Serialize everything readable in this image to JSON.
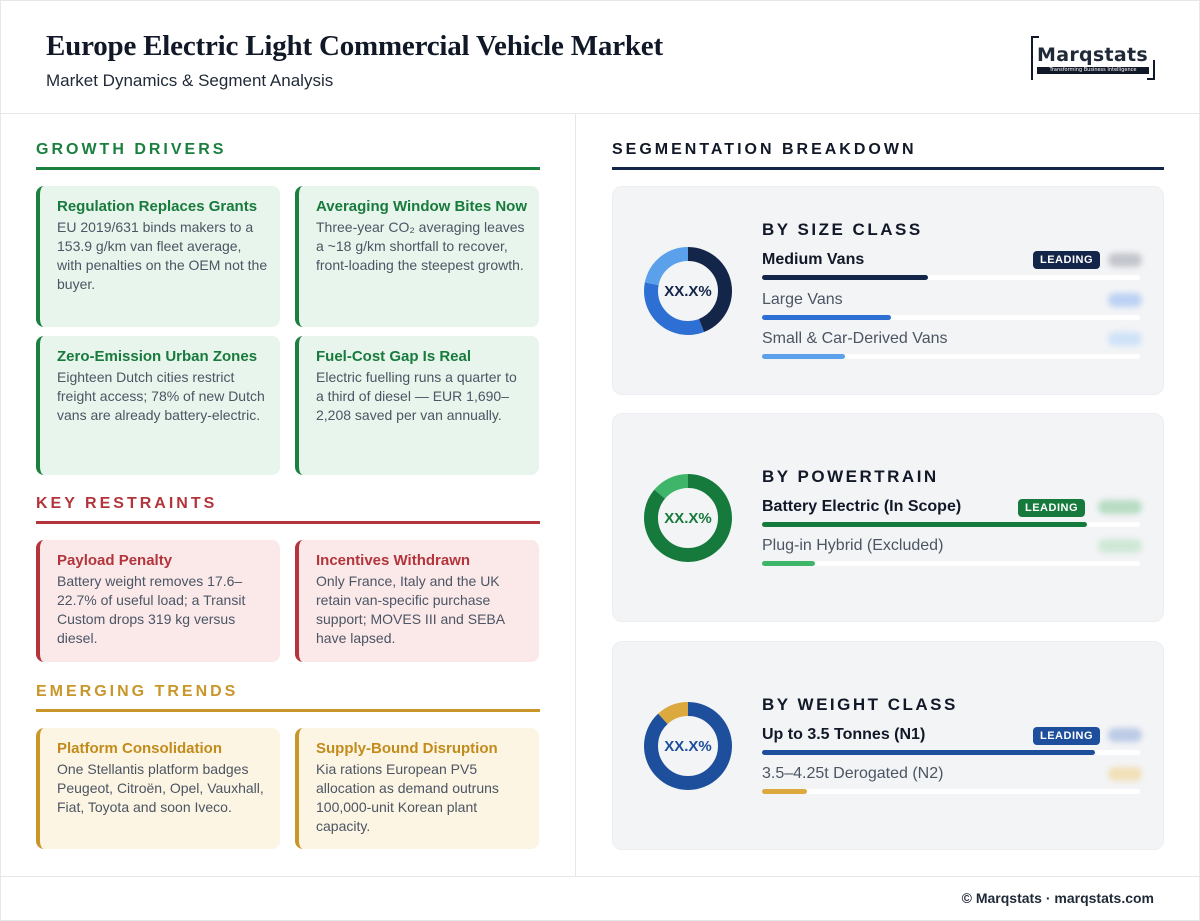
{
  "header": {
    "title": "Europe Electric Light Commercial Vehicle Market",
    "subtitle": "Market Dynamics & Segment Analysis",
    "logo_text": "Marqstats",
    "logo_tagline": "Transforming Business Intelligence"
  },
  "drivers": {
    "heading": "GROWTH DRIVERS",
    "color": "#1a7f3f",
    "cards": [
      {
        "title": "Regulation Replaces Grants",
        "body": "EU 2019/631 binds makers to a 153.9 g/km van fleet average, with penalties on the OEM not the buyer."
      },
      {
        "title": "Averaging Window Bites Now",
        "body": "Three-year CO₂ averaging leaves a ~18 g/km shortfall to recover, front-loading the steepest growth."
      },
      {
        "title": "Zero-Emission Urban Zones",
        "body": "Eighteen Dutch cities restrict freight access; 78% of new Dutch vans are already battery-electric."
      },
      {
        "title": "Fuel-Cost Gap Is Real",
        "body": "Electric fuelling runs a quarter to a third of diesel — EUR 1,690–2,208 saved per van annually."
      }
    ]
  },
  "restraints": {
    "heading": "KEY RESTRAINTS",
    "color": "#b3353b",
    "cards": [
      {
        "title": "Payload Penalty",
        "body": "Battery weight removes 17.6–22.7% of useful load; a Transit Custom drops 319 kg versus diesel."
      },
      {
        "title": "Incentives Withdrawn",
        "body": "Only France, Italy and the UK retain van-specific purchase support; MOVES III and SEBA have lapsed."
      }
    ]
  },
  "trends": {
    "heading": "EMERGING TRENDS",
    "color": "#c9962a",
    "cards": [
      {
        "title": "Platform Consolidation",
        "body": "One Stellantis platform badges Peugeot, Citroën, Opel, Vauxhall, Fiat, Toyota and soon Iveco."
      },
      {
        "title": "Supply-Bound Disruption",
        "body": "Kia rations European PV5 allocation as demand outruns 100,000-unit Korean plant capacity."
      }
    ]
  },
  "segmentation": {
    "heading": "SEGMENTATION BREAKDOWN",
    "badge_label": "LEADING",
    "panels": [
      {
        "title": "BY SIZE CLASS",
        "center_label": "XX.X%",
        "rows": [
          {
            "label": "Medium Vans",
            "share": 0.44,
            "color": "#14254a",
            "leading": true
          },
          {
            "label": "Large Vans",
            "share": 0.34,
            "color": "#2d6fd2",
            "leading": false
          },
          {
            "label": "Small & Car-Derived Vans",
            "share": 0.22,
            "color": "#5aa0ea",
            "leading": false
          }
        ]
      },
      {
        "title": "BY POWERTRAIN",
        "center_label": "XX.X%",
        "rows": [
          {
            "label": "Battery Electric (In Scope)",
            "share": 0.86,
            "color": "#167a3c",
            "leading": true
          },
          {
            "label": "Plug-in Hybrid (Excluded)",
            "share": 0.14,
            "color": "#3fb56a",
            "leading": false
          }
        ]
      },
      {
        "title": "BY WEIGHT CLASS",
        "center_label": "XX.X%",
        "rows": [
          {
            "label": "Up to 3.5 Tonnes (N1)",
            "share": 0.88,
            "color": "#1d4f9c",
            "leading": true
          },
          {
            "label": "3.5–4.25t Derogated (N2)",
            "share": 0.12,
            "color": "#dba93d",
            "leading": false
          }
        ]
      }
    ]
  },
  "footer": {
    "text": "© Marqstats · marqstats.com"
  }
}
